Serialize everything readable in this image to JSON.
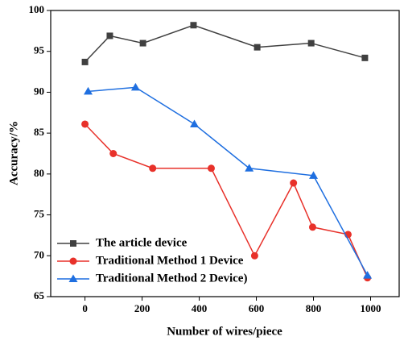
{
  "chart_data": {
    "type": "line",
    "x_label": "Number of wires/piece",
    "y_label": "Accuracy/%",
    "xlim": [
      -120,
      1100
    ],
    "ylim": [
      65,
      100
    ],
    "xticks": [
      0,
      200,
      400,
      600,
      800,
      1000
    ],
    "yticks": [
      65,
      70,
      75,
      80,
      85,
      90,
      95,
      100
    ],
    "grid": false,
    "legend_position": "lower left",
    "series": [
      {
        "name": "The article device",
        "color": "#404040",
        "marker": "square",
        "x": [
          0,
          87,
          203,
          380,
          603,
          792,
          980
        ],
        "values": [
          93.7,
          96.9,
          96.0,
          98.2,
          95.5,
          96.0,
          94.2
        ]
      },
      {
        "name": "Traditional Method 1 Device",
        "color": "#e8312a",
        "marker": "circle",
        "x": [
          0,
          99,
          237,
          442,
          594,
          730,
          797,
          921,
          989
        ],
        "values": [
          86.1,
          82.5,
          80.7,
          80.7,
          70.0,
          78.9,
          73.5,
          72.6,
          67.3
        ]
      },
      {
        "name": "Traditional Method 2 Device)",
        "color": "#1f6fe0",
        "marker": "triangle",
        "x": [
          11,
          177,
          383,
          575,
          800,
          989
        ],
        "values": [
          90.1,
          90.6,
          86.1,
          80.7,
          79.8,
          67.6
        ]
      }
    ]
  }
}
